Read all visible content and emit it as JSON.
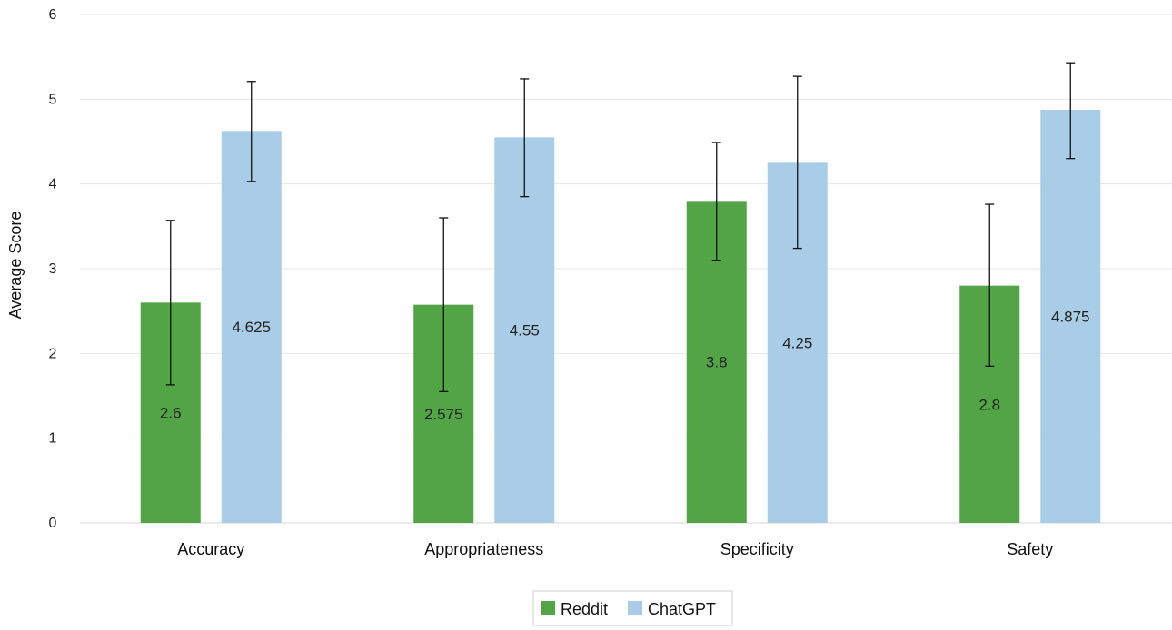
{
  "chart_data": {
    "type": "bar",
    "categories": [
      "Accuracy",
      "Appropriateness",
      "Specificity",
      "Safety"
    ],
    "series": [
      {
        "name": "Reddit",
        "color": "#52a447",
        "values": [
          2.6,
          2.575,
          3.8,
          2.8
        ],
        "labels": [
          "2.6",
          "2.575",
          "3.8",
          "2.8"
        ],
        "error_low": [
          1.63,
          1.55,
          3.1,
          1.85
        ],
        "error_high": [
          3.57,
          3.6,
          4.49,
          3.76
        ]
      },
      {
        "name": "ChatGPT",
        "color": "#a9cde7",
        "values": [
          4.625,
          4.55,
          4.25,
          4.875
        ],
        "labels": [
          "4.625",
          "4.55",
          "4.25",
          "4.875"
        ],
        "error_low": [
          4.03,
          3.85,
          3.24,
          4.3
        ],
        "error_high": [
          5.21,
          5.24,
          5.27,
          5.43
        ]
      }
    ],
    "yticks": [
      "0",
      "1",
      "2",
      "3",
      "4",
      "5",
      "6"
    ],
    "ylim": [
      0,
      6
    ],
    "ylabel": "Average Score",
    "xlabel": "",
    "grid": true,
    "legend": "bottom-center"
  }
}
